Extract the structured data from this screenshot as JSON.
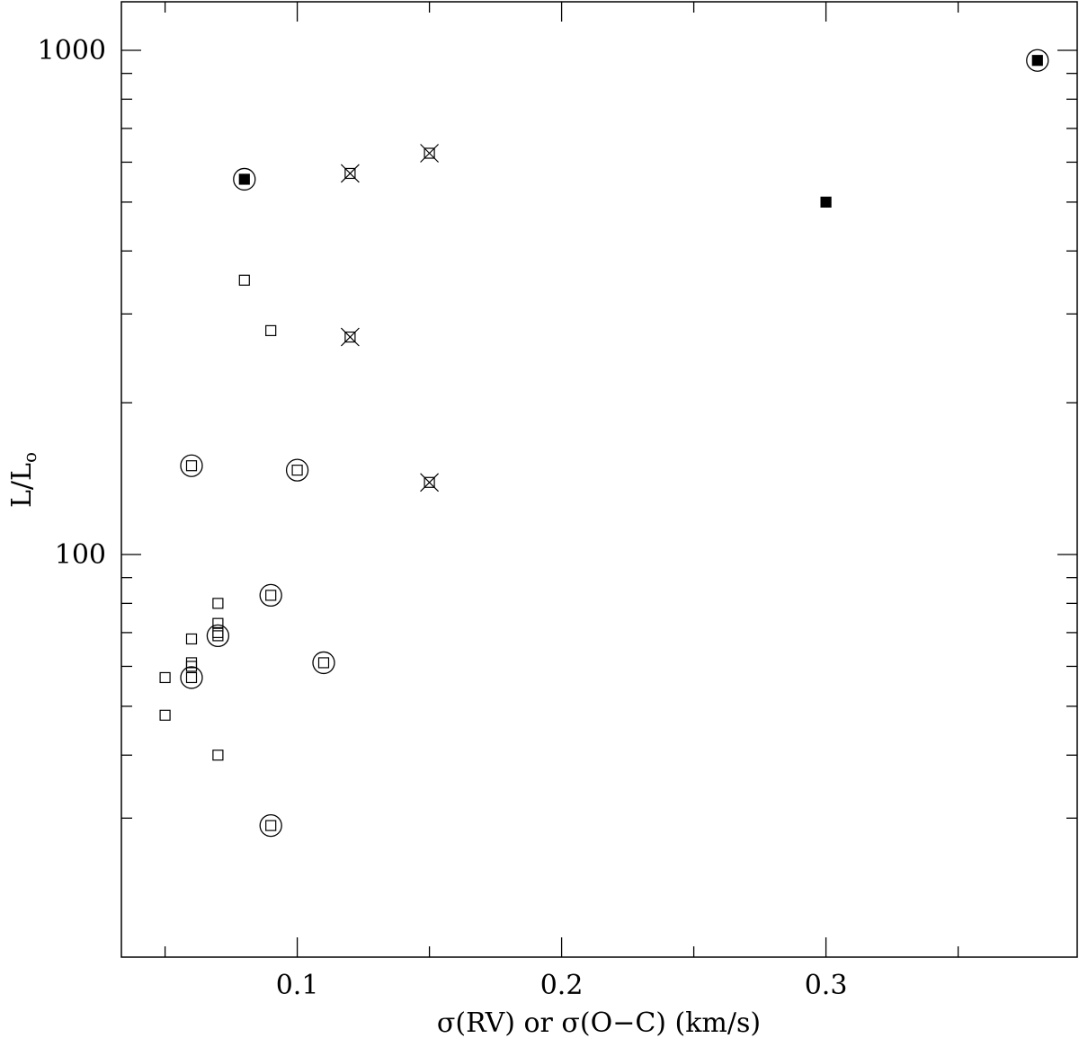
{
  "chart_data": {
    "type": "scatter",
    "title": "",
    "xlabel": "σ(RV) or σ(O−C) (km/s)",
    "ylabel_main": "L/L",
    "ylabel_sub": "o",
    "xlim": [
      0.034,
      0.397
    ],
    "ylim": [
      20,
      1100
    ],
    "yscale": "log",
    "x_major_ticks": [
      0.1,
      0.2,
      0.3
    ],
    "x_tick_labels": [
      "0.1",
      "0.2",
      "0.3"
    ],
    "x_minor_ticks": [
      0.05,
      0.15,
      0.25,
      0.35
    ],
    "y_major_ticks": [
      100,
      1000
    ],
    "y_tick_labels": [
      "100",
      "1000"
    ],
    "y_minor_ticks": [
      30,
      40,
      50,
      60,
      70,
      80,
      90,
      200,
      300,
      400,
      500,
      600,
      700,
      800,
      900
    ],
    "grid": false,
    "legend": "none",
    "series": [
      {
        "marker": "open-square",
        "points": [
          {
            "x": 0.08,
            "y": 350
          },
          {
            "x": 0.09,
            "y": 278
          },
          {
            "x": 0.07,
            "y": 80
          },
          {
            "x": 0.07,
            "y": 73
          },
          {
            "x": 0.07,
            "y": 70
          },
          {
            "x": 0.06,
            "y": 68
          },
          {
            "x": 0.06,
            "y": 61
          },
          {
            "x": 0.06,
            "y": 60
          },
          {
            "x": 0.05,
            "y": 57
          },
          {
            "x": 0.05,
            "y": 48
          },
          {
            "x": 0.07,
            "y": 40
          }
        ]
      },
      {
        "marker": "circled-open-square",
        "points": [
          {
            "x": 0.06,
            "y": 150
          },
          {
            "x": 0.1,
            "y": 147
          },
          {
            "x": 0.09,
            "y": 83
          },
          {
            "x": 0.07,
            "y": 69
          },
          {
            "x": 0.11,
            "y": 61
          },
          {
            "x": 0.06,
            "y": 57
          },
          {
            "x": 0.09,
            "y": 29
          }
        ]
      },
      {
        "marker": "crossed-open-square",
        "points": [
          {
            "x": 0.12,
            "y": 570
          },
          {
            "x": 0.15,
            "y": 625
          },
          {
            "x": 0.12,
            "y": 270
          },
          {
            "x": 0.15,
            "y": 139
          }
        ]
      },
      {
        "marker": "filled-square",
        "points": [
          {
            "x": 0.3,
            "y": 500
          }
        ]
      },
      {
        "marker": "circled-filled-square",
        "points": [
          {
            "x": 0.08,
            "y": 555
          },
          {
            "x": 0.38,
            "y": 955
          }
        ]
      }
    ]
  }
}
